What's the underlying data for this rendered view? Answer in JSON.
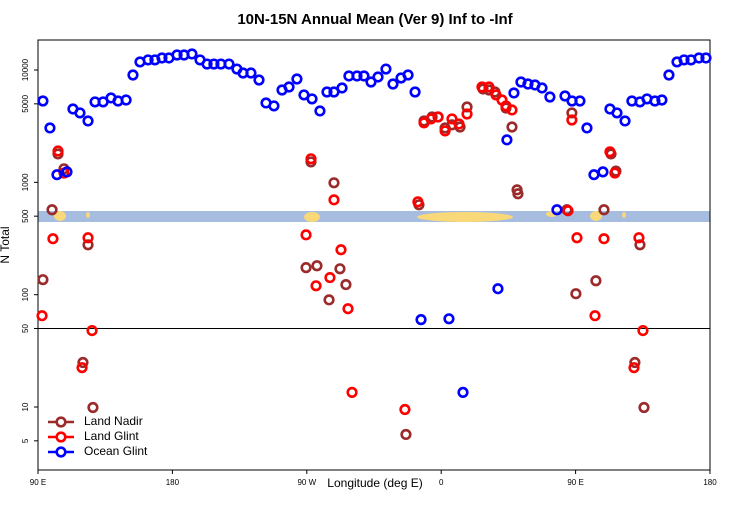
{
  "chart_data": {
    "type": "scatter",
    "title": "10N-15N Annual Mean (Ver 9)   Inf to -Inf",
    "xlabel": "Longitude (deg E)",
    "ylabel": "N Total",
    "xlim": [
      90,
      540
    ],
    "xticks": [
      {
        "value": 90,
        "label": "90 E"
      },
      180,
      {
        "value": 270,
        "label": "90 W"
      },
      {
        "value": 360,
        "label": "0"
      },
      {
        "value": 450,
        "label": "90 E"
      },
      {
        "value": 540,
        "label": "180"
      }
    ],
    "ylim": [
      2.75,
      18500
    ],
    "ylog": true,
    "yticks": [
      5,
      10,
      50,
      100,
      500,
      1000,
      5000,
      10000
    ],
    "hline": 50,
    "legend": "bottom-left",
    "series": [
      {
        "name": "Land Nadir",
        "color": "#9b2a2a",
        "x": [
          93.3,
          99.4,
          103.4,
          107.4,
          120.1,
          123.5,
          126.8,
          269.5,
          272.8,
          276.8,
          284.9,
          288.2,
          292.2,
          296.2,
          336.4,
          345.1,
          348.5,
          353.9,
          357.9,
          362.6,
          367.2,
          372.6,
          377.3,
          388.0,
          392.0,
          396.0,
          403.4,
          407.4,
          410.8,
          411.4,
          444.2,
          447.5,
          450.2,
          463.6,
          469.0,
          473.7,
          477.0,
          489.7,
          493.1,
          495.8
        ],
        "values": [
          136,
          570,
          1790,
          1320,
          24.9,
          278,
          9.9,
          174,
          1520,
          181,
          90,
          991,
          170,
          123,
          5.7,
          631,
          3520,
          3820,
          3820,
          3050,
          3250,
          3110,
          4690,
          6780,
          6640,
          6370,
          4590,
          3110,
          858,
          791,
          570,
          4150,
          102,
          133,
          570,
          1790,
          1260,
          24.9,
          278,
          9.9
        ]
      },
      {
        "name": "Land Glint",
        "color": "#ff0000",
        "x": [
          92.7,
          100.0,
          103.4,
          107.4,
          119.5,
          123.5,
          126.2,
          269.5,
          272.8,
          276.2,
          285.5,
          288.2,
          292.9,
          297.6,
          300.3,
          335.7,
          344.4,
          348.5,
          353.2,
          357.9,
          362.6,
          367.2,
          371.9,
          377.3,
          387.3,
          392.0,
          396.7,
          400.7,
          403.4,
          407.4,
          444.9,
          447.5,
          450.9,
          463.0,
          469.0,
          473.0,
          476.3,
          489.1,
          492.4,
          495.1
        ],
        "values": [
          65,
          315,
          1900,
          1210,
          22.4,
          321,
          47.9,
          341,
          1620,
          120,
          142,
          699,
          251,
          75,
          13.5,
          9.5,
          671,
          3380,
          3670,
          3820,
          2870,
          3670,
          3310,
          4060,
          7060,
          7060,
          6000,
          5410,
          4790,
          4410,
          559,
          3590,
          321,
          65,
          315,
          1870,
          1210,
          22.4,
          321,
          47.9
        ]
      },
      {
        "name": "Ocean Glint",
        "color": "#0000ff",
        "x": [
          93.3,
          98.0,
          102.7,
          109.4,
          113.4,
          118.1,
          123.5,
          128.2,
          133.6,
          138.9,
          143.6,
          149.0,
          153.6,
          158.3,
          163.7,
          168.3,
          173.0,
          177.7,
          183.1,
          187.8,
          193.1,
          198.5,
          203.2,
          207.8,
          212.5,
          217.9,
          223.2,
          227.3,
          232.6,
          238.0,
          242.7,
          248.0,
          253.4,
          258.1,
          263.4,
          268.1,
          273.5,
          278.8,
          283.5,
          288.2,
          293.6,
          298.2,
          303.6,
          308.3,
          313.0,
          317.7,
          323.0,
          327.7,
          333.1,
          337.8,
          342.5,
          346.5,
          365.2,
          374.6,
          398.0,
          404.0,
          408.7,
          413.4,
          418.1,
          422.8,
          427.5,
          432.8,
          437.5,
          442.9,
          447.6,
          452.9,
          457.6,
          462.3,
          468.3,
          473.0,
          477.7,
          483.1,
          487.7,
          493.1,
          497.8,
          503.1,
          507.8,
          512.5,
          517.9,
          522.6,
          527.3,
          532.6,
          537.3
        ],
        "values": [
          5300,
          3050,
          1170,
          1240,
          4500,
          4150,
          3520,
          5200,
          5200,
          5640,
          5300,
          5410,
          9030,
          11800,
          12300,
          12300,
          12800,
          12800,
          13600,
          13600,
          13900,
          12300,
          11300,
          11300,
          11300,
          11300,
          10200,
          9400,
          9400,
          8150,
          5090,
          4790,
          6640,
          7060,
          8320,
          6000,
          5530,
          4320,
          6370,
          6370,
          6920,
          8850,
          8850,
          8850,
          7820,
          8670,
          10200,
          7510,
          8490,
          9030,
          6370,
          60,
          61,
          13.5,
          113,
          2390,
          6250,
          7820,
          7510,
          7360,
          6920,
          5750,
          570,
          5870,
          5300,
          5300,
          3050,
          1170,
          1240,
          4500,
          4150,
          3520,
          5300,
          5200,
          5530,
          5300,
          5410,
          9030,
          11800,
          12300,
          12300,
          12800,
          12800
        ]
      }
    ]
  }
}
